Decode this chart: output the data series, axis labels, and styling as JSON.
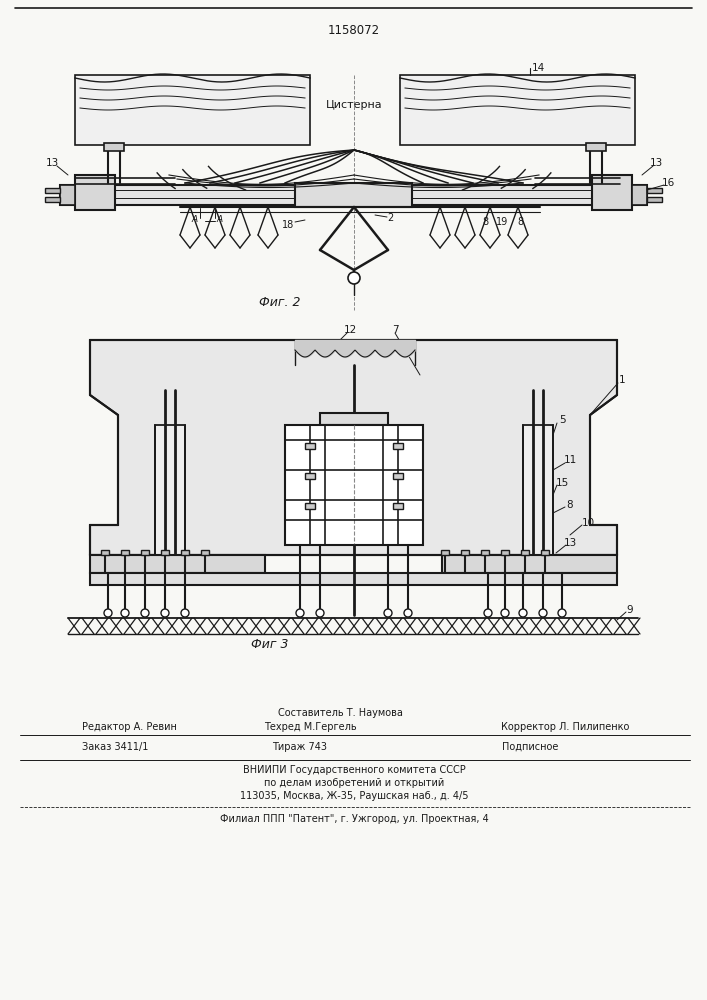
{
  "patent_number": "1158072",
  "background_color": "#f8f8f5",
  "fig2_caption": "Фиг. 2",
  "fig3_caption": "Фиг 3",
  "footer": {
    "editor": "Редактор А. Ревин",
    "composer_label": "Составитель Т. Наумова",
    "techred": "Техред М.Гергель",
    "corrector": "Корректор Л. Пилипенко",
    "order": "Заказ 3411/1",
    "circulation": "Тираж 743",
    "subscription": "Подписное",
    "vniipi_line1": "ВНИИПИ Государственного комитета СССР",
    "vniipi_line2": "по делам изобретений и открытий",
    "vniipi_line3": "113035, Москва, Ж-35, Раушская наб., д. 4/5",
    "filial": "Филиал ППП \"Патент\", г. Ужгород, ул. Проектная, 4"
  },
  "line_color": "#1a1a1a",
  "text_color": "#1a1a1a"
}
